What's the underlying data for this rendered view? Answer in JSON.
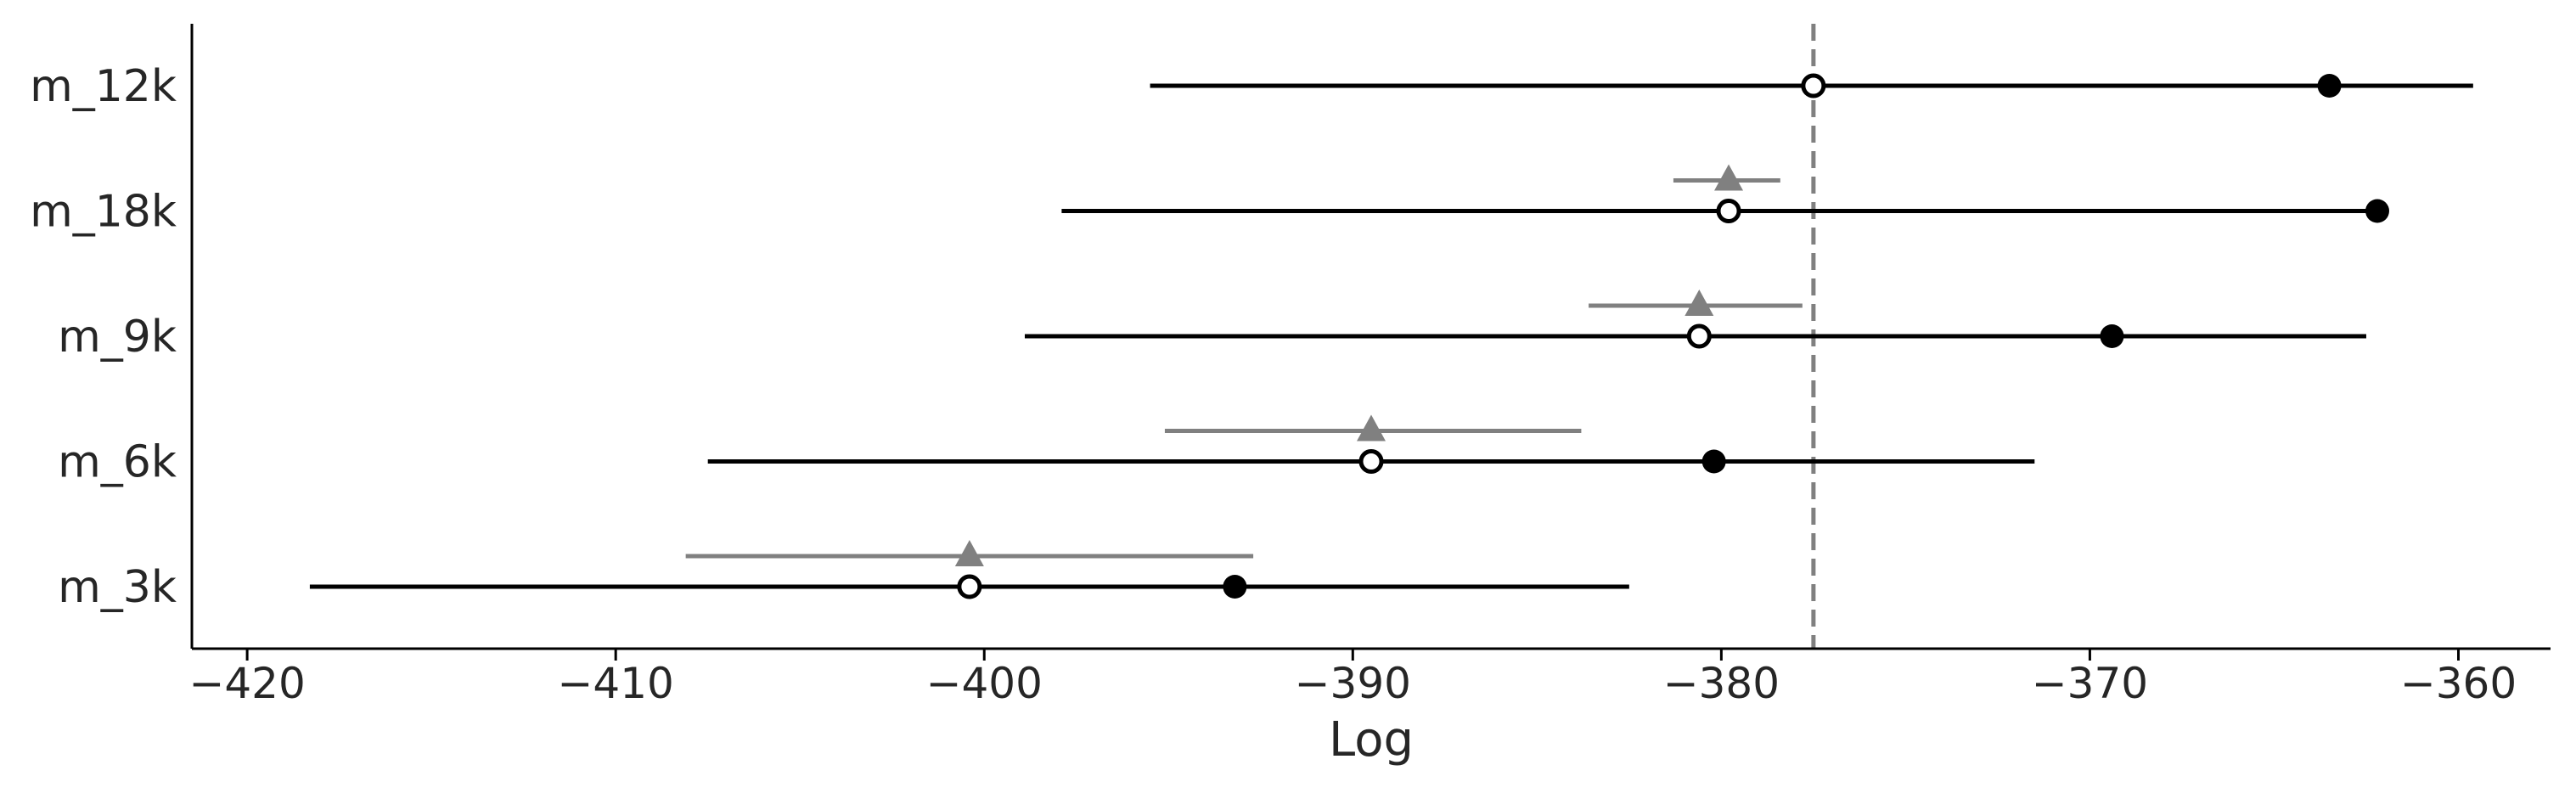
{
  "chart_data": {
    "type": "compare",
    "xlabel": "Log",
    "xlim": [
      -421.5,
      -357.5
    ],
    "xticks": [
      -420,
      -410,
      -400,
      -390,
      -380,
      -370,
      -360
    ],
    "reference_line": -377.5,
    "models": [
      {
        "name": "m_12k",
        "in_sample": -363.5,
        "in_sample_interval": [
          -395.5,
          -359.6
        ],
        "elpd": -377.5,
        "difference": null,
        "difference_interval": null
      },
      {
        "name": "m_18k",
        "in_sample": -362.2,
        "in_sample_interval": [
          -397.9,
          -362.2
        ],
        "elpd": -379.8,
        "difference": -379.8,
        "difference_interval": [
          -381.3,
          -378.4
        ]
      },
      {
        "name": "m_9k",
        "in_sample": -369.4,
        "in_sample_interval": [
          -398.9,
          -362.5
        ],
        "elpd": -380.6,
        "difference": -380.6,
        "difference_interval": [
          -383.6,
          -377.8
        ]
      },
      {
        "name": "m_6k",
        "in_sample": -380.2,
        "in_sample_interval": [
          -407.5,
          -371.5
        ],
        "elpd": -389.5,
        "difference": -389.5,
        "difference_interval": [
          -395.1,
          -383.8
        ]
      },
      {
        "name": "m_3k",
        "in_sample": -393.2,
        "in_sample_interval": [
          -418.3,
          -382.5
        ],
        "elpd": -400.4,
        "difference": -400.4,
        "difference_interval": [
          -408.1,
          -392.7
        ]
      }
    ],
    "colors": {
      "main": "#000000",
      "difference": "#808080",
      "reference": "#808080",
      "text": "#262626"
    }
  }
}
